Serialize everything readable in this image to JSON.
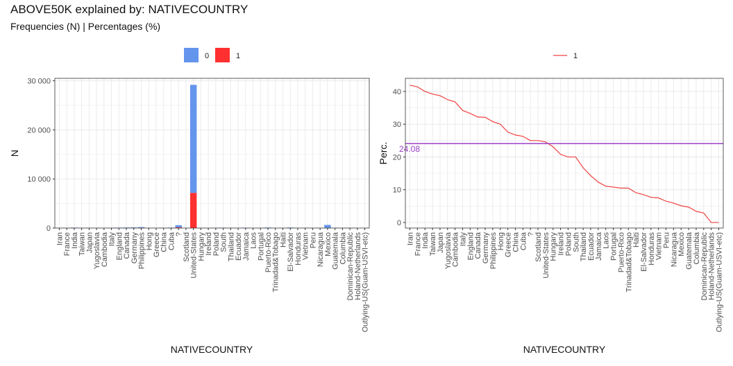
{
  "title": "ABOVE50K explained by: NATIVECOUNTRY",
  "subtitle": "Frequencies (N) | Percentages (%)",
  "colors": {
    "zero": "#6495ED",
    "one": "#FF3030",
    "line": "#F04040",
    "ref": "#9B3FC8",
    "grid": "#EBEBEB"
  },
  "chart_data": [
    {
      "type": "bar",
      "stacked": true,
      "xlabel": "NATIVECOUNTRY",
      "ylabel": "N",
      "ylim": [
        0,
        30500
      ],
      "yticks": [
        0,
        10000,
        20000,
        30000
      ],
      "ytick_labels": [
        "0",
        "10 000",
        "20 000",
        "30 000"
      ],
      "legend_position": "top",
      "categories": [
        "Iran",
        "France",
        "India",
        "Taiwan",
        "Japan",
        "Yugoslavia",
        "Cambodia",
        "Italy",
        "England",
        "Canada",
        "Germany",
        "Philippines",
        "Hong",
        "Greece",
        "China",
        "Cuba",
        "?",
        "Scotland",
        "United-States",
        "Hungary",
        "Ireland",
        "Poland",
        "South",
        "Thailand",
        "Ecuador",
        "Jamaica",
        "Laos",
        "Portugal",
        "Puerto-Rico",
        "Trinadad&Tobago",
        "Haiti",
        "El-Salvador",
        "Honduras",
        "Vietnam",
        "Peru",
        "Nicaragua",
        "Mexico",
        "Guatemala",
        "Columbia",
        "Dominican-Republic",
        "Holand-Netherlands",
        "Outlying-US(Guam-USVI-etc)"
      ],
      "series": [
        {
          "name": "0",
          "values": [
            25,
            17,
            60,
            31,
            38,
            10,
            12,
            48,
            60,
            82,
            93,
            137,
            14,
            20,
            55,
            70,
            437,
            9,
            22000,
            10,
            20,
            48,
            64,
            15,
            24,
            71,
            16,
            33,
            102,
            17,
            40,
            97,
            12,
            62,
            29,
            32,
            610,
            61,
            57,
            68,
            1,
            14
          ]
        },
        {
          "name": "1",
          "values": [
            18,
            12,
            40,
            20,
            24,
            6,
            7,
            25,
            30,
            39,
            44,
            61,
            6,
            8,
            20,
            25,
            146,
            3,
            7171,
            3,
            5,
            12,
            16,
            3,
            4,
            10,
            2,
            4,
            12,
            2,
            4,
            9,
            1,
            5,
            2,
            2,
            33,
            3,
            2,
            2,
            0,
            0
          ]
        }
      ]
    },
    {
      "type": "line",
      "xlabel": "NATIVECOUNTRY",
      "ylabel": "Perc.",
      "ylim": [
        -1.7,
        44
      ],
      "yticks": [
        0,
        10,
        20,
        30,
        40
      ],
      "legend_position": "top",
      "series": [
        {
          "name": "1",
          "values": [
            41.9,
            41.4,
            40.0,
            39.2,
            38.7,
            37.5,
            36.8,
            34.2,
            33.3,
            32.2,
            32.1,
            30.8,
            30.0,
            27.6,
            26.7,
            26.3,
            25.0,
            25.0,
            24.6,
            23.1,
            20.8,
            20.0,
            20.0,
            16.7,
            14.3,
            12.3,
            11.1,
            10.8,
            10.5,
            10.5,
            9.1,
            8.5,
            7.7,
            7.5,
            6.5,
            5.9,
            5.1,
            4.7,
            3.4,
            2.9,
            0.0,
            0.0
          ]
        }
      ],
      "reference_line": {
        "value": 24.08,
        "label": "24.08"
      }
    }
  ]
}
